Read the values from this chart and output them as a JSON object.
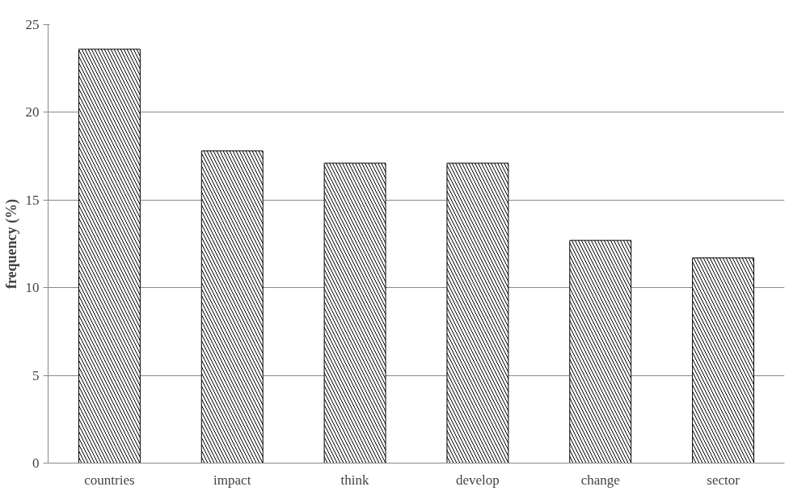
{
  "chart_data": {
    "type": "bar",
    "ylabel": "frequency (%)",
    "categories": [
      "countries",
      "impact",
      "think",
      "develop",
      "change",
      "sector"
    ],
    "values": [
      23.6,
      17.8,
      17.1,
      17.1,
      12.7,
      11.7
    ],
    "color": "#000000",
    "ylim": [
      0,
      25
    ],
    "yticks": [
      0,
      5,
      10,
      15,
      20,
      25
    ],
    "grid": "y"
  }
}
